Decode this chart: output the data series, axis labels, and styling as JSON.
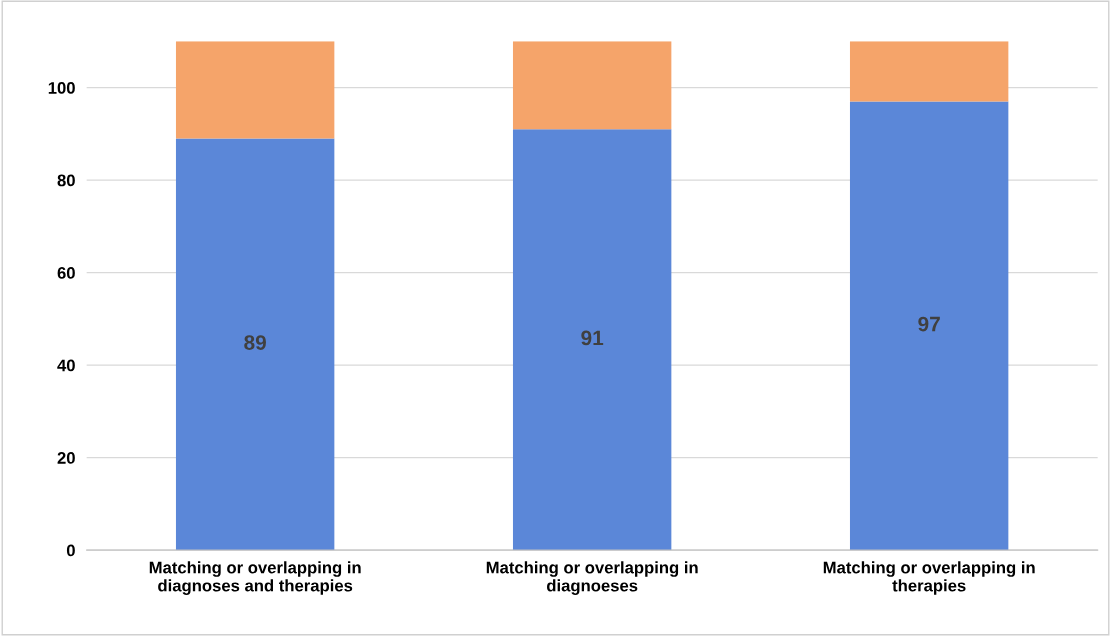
{
  "chart_data": {
    "type": "bar",
    "stacked": true,
    "categories": [
      "Matching or overlapping in\ndiagnoses and therapies",
      "Matching or overlapping in\ndiagnoeses",
      "Matching or overlapping in\ntherapies"
    ],
    "series": [
      {
        "color": "#5b87d8",
        "values": [
          89,
          91,
          97
        ],
        "value_labels": [
          "89",
          "91",
          "97"
        ]
      },
      {
        "color": "#f5a46a",
        "values": [
          21,
          19,
          13
        ]
      }
    ],
    "ylim": [
      0,
      110
    ],
    "yticks": [
      0,
      20,
      40,
      60,
      80,
      100
    ],
    "grid": "y",
    "legend": false
  }
}
